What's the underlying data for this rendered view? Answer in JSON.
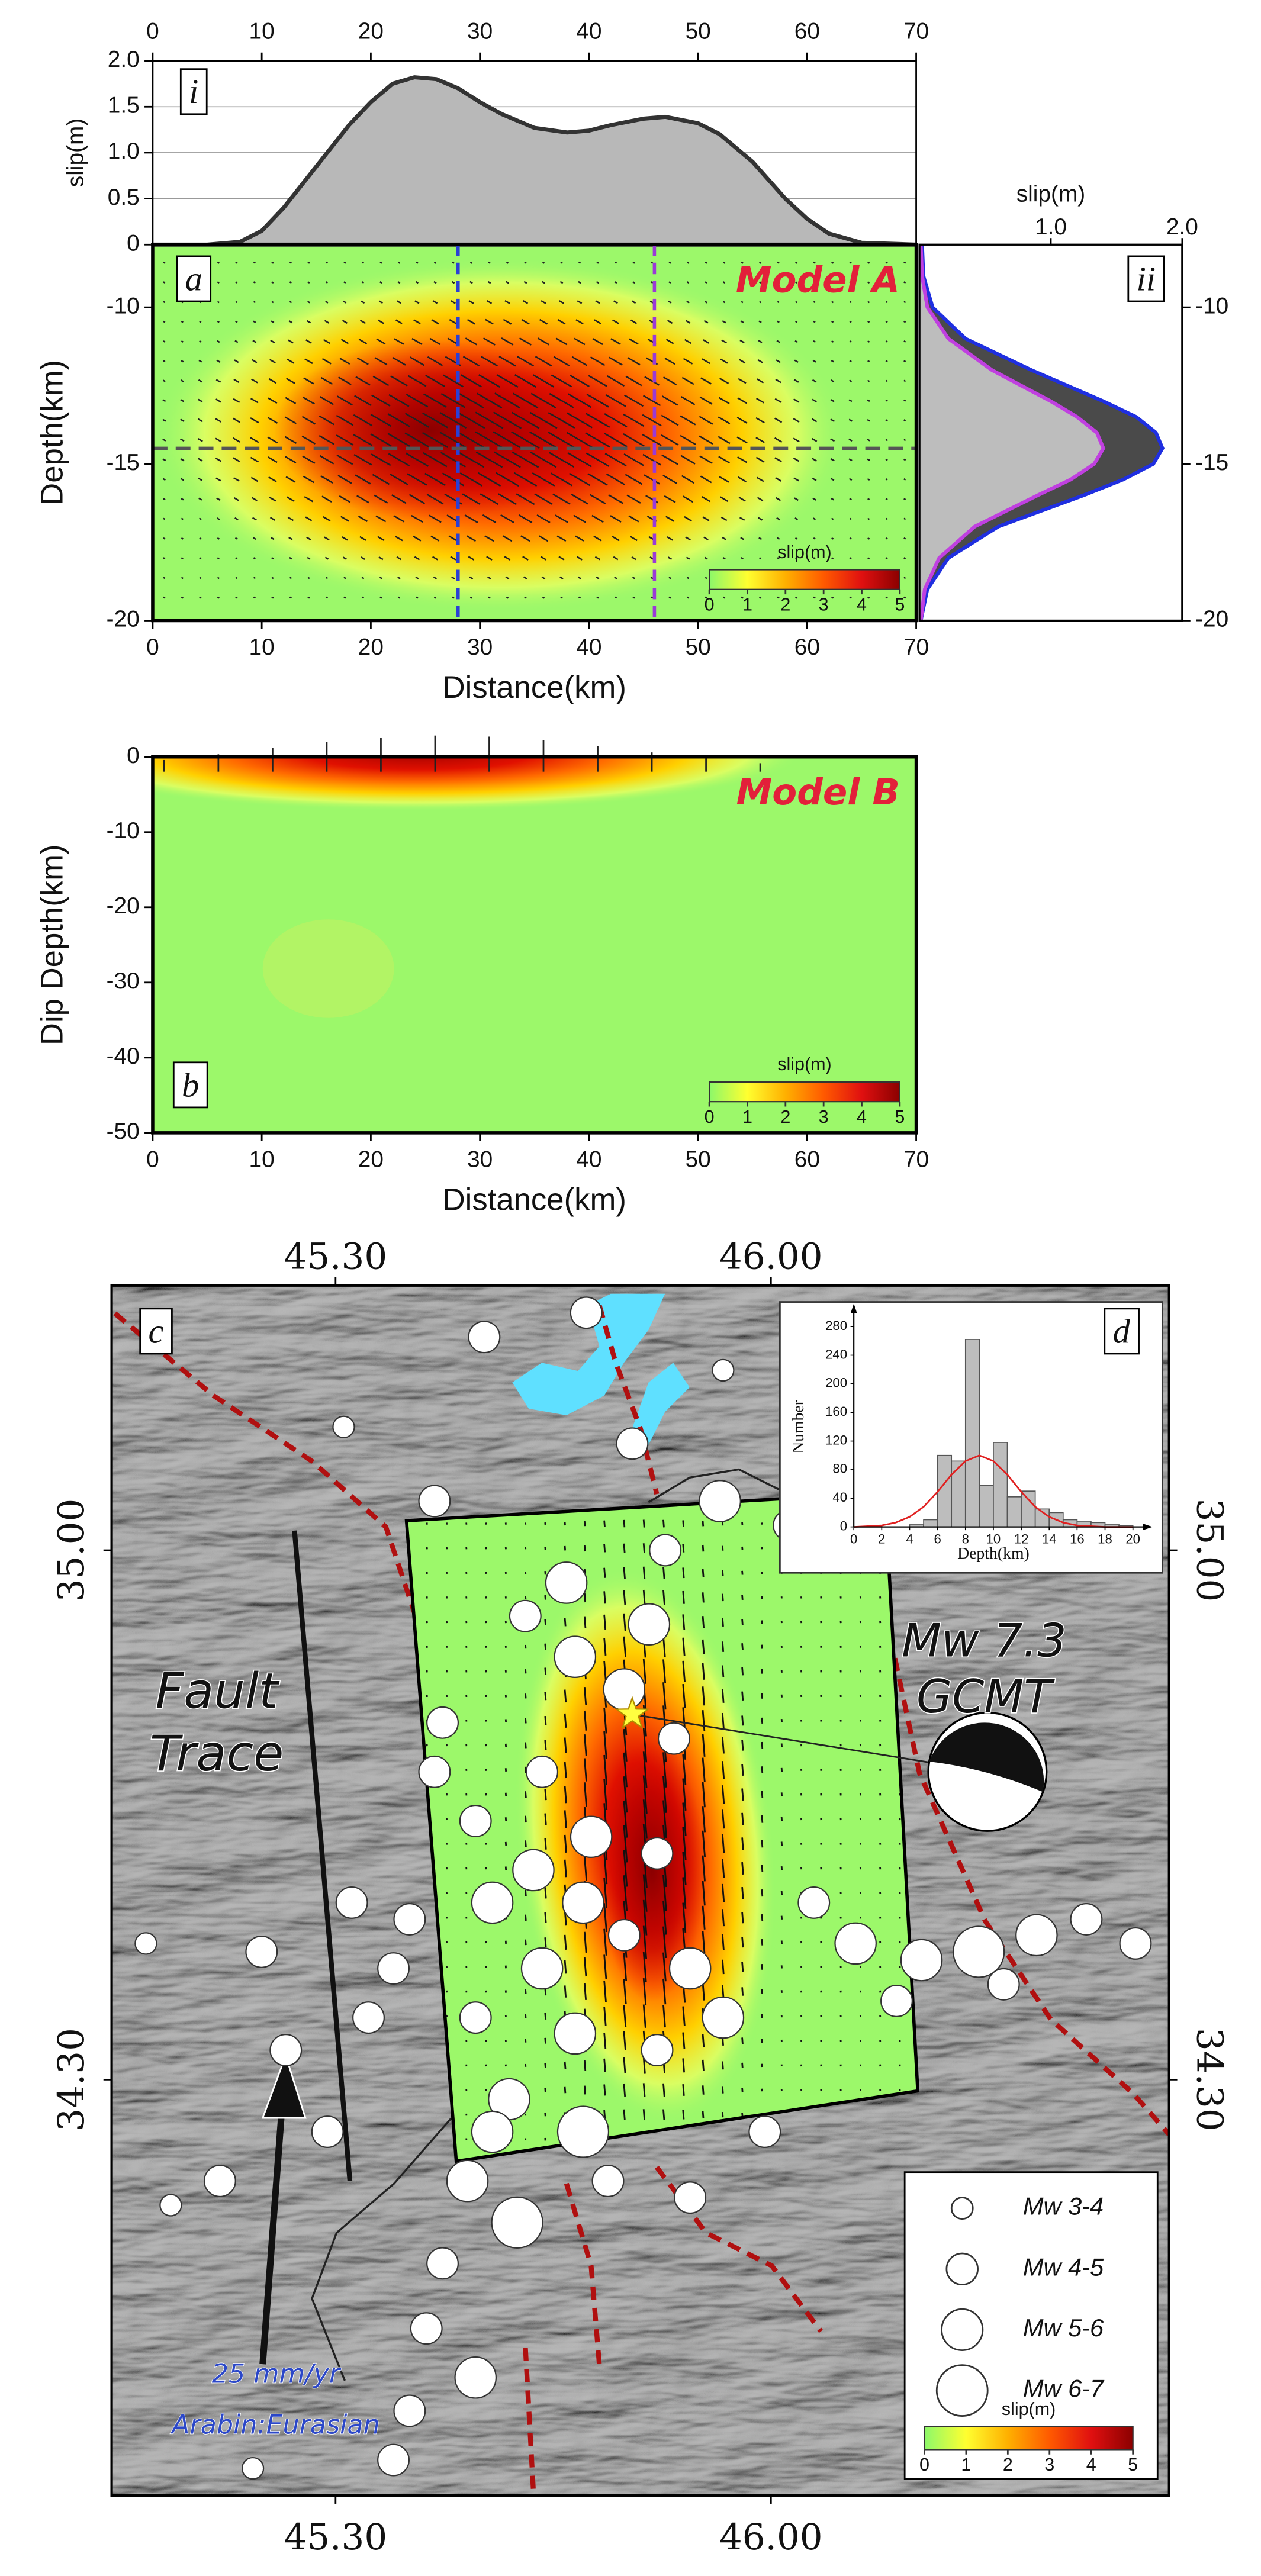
{
  "chart_data": [
    {
      "type": "area",
      "panel_label": "i",
      "ylabel": "slip(m)",
      "x": [
        0,
        5,
        8,
        10,
        12,
        15,
        18,
        20,
        22,
        24,
        26,
        28,
        30,
        32,
        35,
        38,
        40,
        42,
        45,
        47,
        50,
        52,
        55,
        58,
        60,
        62,
        65,
        70
      ],
      "values": [
        0,
        0,
        0.03,
        0.15,
        0.4,
        0.85,
        1.3,
        1.55,
        1.75,
        1.82,
        1.8,
        1.7,
        1.55,
        1.42,
        1.27,
        1.22,
        1.24,
        1.3,
        1.37,
        1.39,
        1.32,
        1.2,
        0.9,
        0.5,
        0.28,
        0.12,
        0.02,
        0
      ],
      "color": "#b8b8b8",
      "line_color": "#333333",
      "xlim": [
        0,
        70
      ],
      "xticks": [
        0,
        10,
        20,
        30,
        40,
        50,
        60,
        70
      ],
      "ylim": [
        0,
        2
      ],
      "yticks": [
        0,
        0.5,
        {
          "value": 1,
          "label": "1.0"
        },
        1.5,
        {
          "value": 2,
          "label": "2.0"
        }
      ],
      "grid": true
    },
    {
      "type": "heatmap",
      "panel_label": "a",
      "title": "Model A",
      "xlabel": "Distance(km)",
      "ylabel": "Depth(km)",
      "xlim": [
        0,
        70
      ],
      "xticks": [
        0,
        10,
        20,
        30,
        40,
        50,
        60,
        70
      ],
      "ylim": [
        -20,
        -8
      ],
      "yticks": [
        -10,
        -15,
        -20
      ],
      "vlines": [
        {
          "x": 28,
          "color": "#2a3fd6"
        },
        {
          "x": 46,
          "color": "#9a3ad6"
        }
      ],
      "hlines": [
        {
          "y": -14.5,
          "color": "#555555"
        }
      ],
      "colorbar": {
        "label": "slip(m)",
        "lim": [
          0,
          5
        ],
        "ticks": [
          0,
          1,
          2,
          3,
          4,
          5
        ]
      }
    },
    {
      "type": "line",
      "panel_label": "ii",
      "xlabel": "slip(m)",
      "y": [
        -8,
        -9,
        -10,
        -11,
        -12,
        -13,
        -13.5,
        -14,
        -14.5,
        -15,
        -15.5,
        -16,
        -17,
        -18,
        -19,
        -20
      ],
      "series": [
        {
          "color": "#1f2fe0",
          "fill": "#4a4a4a",
          "values": [
            0.02,
            0.03,
            0.1,
            0.35,
            0.85,
            1.4,
            1.65,
            1.8,
            1.85,
            1.78,
            1.55,
            1.25,
            0.6,
            0.22,
            0.06,
            0.01
          ]
        },
        {
          "color": "#c040e0",
          "fill": "#bdbdbd",
          "values": [
            0.01,
            0.02,
            0.06,
            0.22,
            0.55,
            1.0,
            1.2,
            1.35,
            1.4,
            1.33,
            1.15,
            0.9,
            0.42,
            0.15,
            0.04,
            0.01
          ]
        }
      ],
      "xlim": [
        0,
        2
      ],
      "xticks": [
        {
          "value": 1,
          "label": "1.0"
        },
        {
          "value": 2,
          "label": "2.0"
        }
      ],
      "ylim": [
        -20,
        -8
      ],
      "yticks": [
        -10,
        -15,
        -20
      ]
    },
    {
      "type": "heatmap",
      "panel_label": "b",
      "title": "Model B",
      "xlabel": "Distance(km)",
      "ylabel": "Dip Depth(km)",
      "xlim": [
        0,
        70
      ],
      "xticks": [
        0,
        10,
        20,
        30,
        40,
        50,
        60,
        70
      ],
      "ylim": [
        -50,
        0
      ],
      "yticks": [
        0,
        -10,
        -20,
        -30,
        -40,
        -50
      ],
      "vlines": [],
      "hlines": [],
      "colorbar": {
        "label": "slip(m)",
        "lim": [
          0,
          5
        ],
        "ticks": [
          0,
          1,
          2,
          3,
          4,
          5
        ]
      }
    },
    {
      "type": "map",
      "panel_label": "c",
      "xlim": [
        44.94,
        46.64
      ],
      "xticks": [
        {
          "value": 45.3,
          "label": "45.30"
        },
        {
          "value": 46,
          "label": "46.00"
        }
      ],
      "ylim": [
        33.75,
        35.35
      ],
      "yticks": [
        {
          "value": 35,
          "label": "35.00"
        },
        {
          "value": 34.3,
          "label": "34.30"
        }
      ],
      "fault_plane": {
        "lon": [
          45.414,
          46.183,
          46.236,
          45.494
        ],
        "lat": [
          35.039,
          35.076,
          34.285,
          34.192
        ],
        "color": "#9cf86a"
      },
      "fault_trace": {
        "lon": [
          45.234,
          45.323
        ],
        "lat": [
          35.026,
          34.166
        ],
        "color": "#111111"
      },
      "epicenter": {
        "lon": 45.777,
        "lat": 34.783,
        "color": "#ffff40"
      },
      "gcmt": {
        "lon": 46.348,
        "lat": 34.707,
        "label": [
          "Mw 7.3",
          "GCMT"
        ]
      },
      "events": {
        "color": "#ffffff",
        "lon": [
          45.703,
          45.777,
          45.918,
          45.83,
          45.671,
          45.605,
          45.804,
          45.685,
          45.764,
          45.844,
          45.632,
          45.459,
          45.525,
          45.711,
          45.817,
          45.552,
          45.419,
          45.632,
          45.764,
          45.87,
          45.525,
          45.685,
          45.817,
          45.579,
          45.698,
          45.592,
          45.512,
          45.472,
          45.446,
          45.525,
          45.419,
          45.393,
          45.738,
          45.87,
          45.99,
          45.923,
          46.136,
          46.242,
          46.334,
          46.427,
          46.507,
          46.586,
          46.202,
          46.069,
          46.374,
          45.393,
          45.353,
          45.181,
          45.22,
          44.995,
          45.114,
          45.035,
          45.326,
          45.313,
          45.459,
          45.539,
          45.923,
          46.029,
          45.472,
          45.618,
          45.698,
          45.552,
          45.167,
          45.287
        ],
        "lat": [
          35.314,
          35.141,
          35.065,
          35.0,
          34.957,
          34.913,
          34.902,
          34.859,
          34.816,
          34.751,
          34.707,
          34.707,
          34.642,
          34.621,
          34.599,
          34.534,
          34.512,
          34.447,
          34.491,
          34.447,
          34.382,
          34.361,
          34.339,
          34.274,
          34.231,
          34.111,
          34.166,
          34.057,
          33.971,
          33.906,
          33.862,
          33.797,
          34.166,
          34.144,
          34.231,
          34.382,
          34.48,
          34.458,
          34.469,
          34.491,
          34.512,
          34.48,
          34.404,
          34.534,
          34.426,
          34.447,
          34.382,
          34.469,
          34.339,
          34.48,
          34.166,
          34.134,
          34.534,
          35.163,
          35.065,
          35.282,
          35.238,
          35.033,
          34.772,
          34.577,
          34.534,
          34.231,
          33.786,
          34.231
        ],
        "mw": [
          4.5,
          4.5,
          5.5,
          4.5,
          5.5,
          4.5,
          5.5,
          5.5,
          5.5,
          4.5,
          4.5,
          4.5,
          4.5,
          5.5,
          4.5,
          5.5,
          4.5,
          5.5,
          4.5,
          5.5,
          4.5,
          5.5,
          4.5,
          5.5,
          6.5,
          6.5,
          5.5,
          4.5,
          4.5,
          5.5,
          4.5,
          4.5,
          4.5,
          4.5,
          4.5,
          5.5,
          5.5,
          5.5,
          6.5,
          5.5,
          4.5,
          4.5,
          4.5,
          4.5,
          4.5,
          4.5,
          4.5,
          4.5,
          4.5,
          3.5,
          4.5,
          3.5,
          4.5,
          3.5,
          4.5,
          4.5,
          3.5,
          4.5,
          4.5,
          5.5,
          5.5,
          5.5,
          3.5,
          4.5
        ]
      },
      "annotations": {
        "fault_trace": [
          "Fault",
          "Trace"
        ],
        "velocity": "25 mm/yr",
        "plate_pair": "Arabin:Eurasian"
      },
      "legend": {
        "corner": "bottom-right",
        "items": [
          "Mw 3-4",
          "Mw 4-5",
          "Mw 5-6",
          "Mw 6-7"
        ]
      },
      "colorbar": {
        "label": "slip(m)",
        "lim": [
          0,
          5
        ],
        "ticks": [
          0,
          1,
          2,
          3,
          4,
          5
        ]
      }
    },
    {
      "type": "histogram",
      "panel_label": "d",
      "xlabel": "Depth(km)",
      "ylabel": "Number",
      "bins": [
        4,
        5,
        6,
        7,
        8,
        9,
        10,
        11,
        12,
        13,
        14,
        15,
        16,
        17,
        18,
        19,
        20
      ],
      "values": [
        3,
        10,
        100,
        92,
        262,
        58,
        118,
        42,
        50,
        25,
        20,
        10,
        8,
        6,
        3,
        2
      ],
      "color": "#bdbdbd",
      "xlim": [
        0,
        20
      ],
      "xticks": [
        0,
        2,
        4,
        6,
        8,
        10,
        12,
        14,
        16,
        18,
        20
      ],
      "ylim": [
        0,
        280
      ],
      "yticks": [
        0,
        40,
        80,
        120,
        160,
        200,
        240,
        280
      ],
      "fit": {
        "color": "#e02020",
        "x": [
          0,
          1,
          2,
          3,
          4,
          5,
          6,
          7,
          8,
          9,
          10,
          11,
          12,
          13,
          14,
          15,
          16,
          17,
          18,
          19,
          20
        ],
        "values": [
          0,
          1,
          2,
          6,
          14,
          28,
          49,
          73,
          92,
          100,
          92,
          73,
          49,
          28,
          14,
          6,
          2,
          1,
          0,
          0,
          0
        ]
      }
    }
  ]
}
